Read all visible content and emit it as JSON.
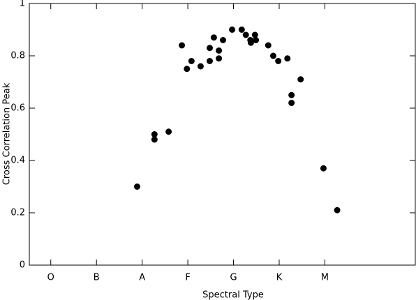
{
  "chart_data": {
    "type": "scatter",
    "xlabel": "Spectral Type",
    "ylabel": "Cross Correlation Peak",
    "x": [
      1.89,
      2.27,
      2.27,
      2.58,
      2.87,
      2.98,
      3.08,
      3.28,
      3.48,
      3.48,
      3.57,
      3.68,
      3.68,
      3.77,
      3.97,
      4.18,
      4.27,
      4.37,
      4.38,
      4.47,
      4.49,
      4.76,
      4.87,
      4.98,
      5.18,
      5.27,
      5.27,
      5.47,
      5.97,
      6.27
    ],
    "values": [
      0.3,
      0.5,
      0.48,
      0.51,
      0.84,
      0.75,
      0.78,
      0.76,
      0.83,
      0.78,
      0.87,
      0.82,
      0.79,
      0.86,
      0.9,
      0.9,
      0.88,
      0.86,
      0.85,
      0.88,
      0.86,
      0.84,
      0.8,
      0.78,
      0.79,
      0.65,
      0.62,
      0.71,
      0.37,
      0.21
    ],
    "color": "#000000",
    "xlim": [
      -0.47,
      7.98
    ],
    "xticks": [
      {
        "value": 0,
        "label": "O"
      },
      {
        "value": 1,
        "label": "B"
      },
      {
        "value": 2,
        "label": "A"
      },
      {
        "value": 3,
        "label": "F"
      },
      {
        "value": 4,
        "label": "G"
      },
      {
        "value": 5,
        "label": "K"
      },
      {
        "value": 6,
        "label": "M"
      }
    ],
    "ylim": [
      0,
      1
    ],
    "yticks": [
      0,
      0.2,
      0.4,
      0.6,
      0.8,
      1
    ]
  }
}
